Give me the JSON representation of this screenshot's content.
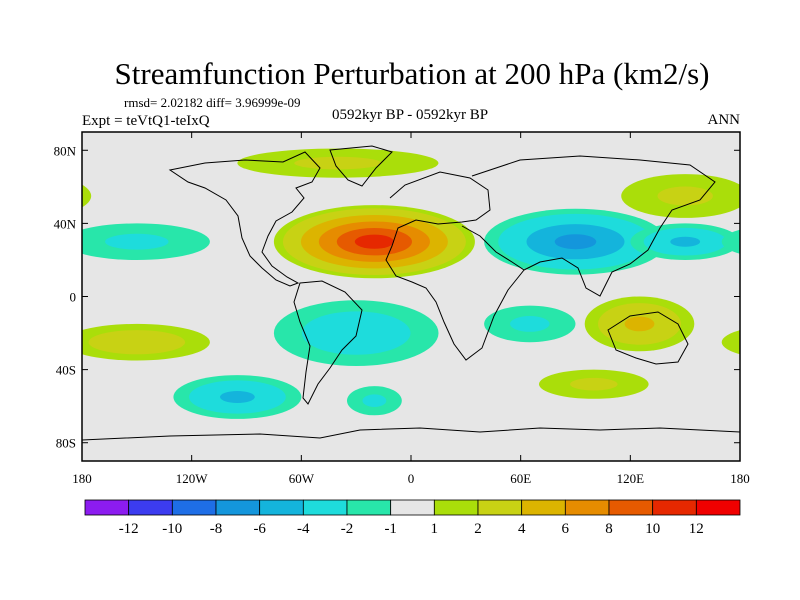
{
  "figure": {
    "title": "Streamfunction Perturbation at 200 hPa (km2/s)",
    "stats": "rmsd= 2.02182  diff= 3.96999e-09",
    "left_label": "Expt = teVtQ1-teIxQ",
    "center_label": "0592kyr BP - 0592kyr BP",
    "right_label": "ANN"
  },
  "chart_data": {
    "type": "filled-contour-map",
    "title": "Streamfunction Perturbation at 200 hPa (km2/s)",
    "projection": "cylindrical equidistant",
    "x_range": [
      -180,
      180
    ],
    "y_range": [
      -90,
      90
    ],
    "x_ticks": [
      {
        "value": -180,
        "label": "180"
      },
      {
        "value": -120,
        "label": "120W"
      },
      {
        "value": -60,
        "label": "60W"
      },
      {
        "value": 0,
        "label": "0"
      },
      {
        "value": 60,
        "label": "60E"
      },
      {
        "value": 120,
        "label": "120E"
      },
      {
        "value": 180,
        "label": "180"
      }
    ],
    "y_ticks": [
      {
        "value": 80,
        "label": "80N"
      },
      {
        "value": 40,
        "label": "40N"
      },
      {
        "value": 0,
        "label": "0"
      },
      {
        "value": -40,
        "label": "40S"
      },
      {
        "value": -80,
        "label": "80S"
      }
    ],
    "contour_levels": [
      -12,
      -10,
      -8,
      -6,
      -4,
      -2,
      -1,
      1,
      2,
      4,
      6,
      8,
      10,
      12
    ],
    "colorbar_colors": [
      "#8c1cf0",
      "#3c3cf0",
      "#1e6ee6",
      "#1496dc",
      "#14b4dc",
      "#1edcdc",
      "#28e6aa",
      "#e6e6e6",
      "#aade0a",
      "#c8d214",
      "#dcb400",
      "#e68c00",
      "#e65a00",
      "#e62800",
      "#f00000"
    ],
    "features": [
      {
        "name": "North Atlantic / North Africa high",
        "lon": -20,
        "lat": 30,
        "lon_radius": 55,
        "lat_radius": 20,
        "peak": 10
      },
      {
        "name": "Asian low",
        "lon": 90,
        "lat": 30,
        "lon_radius": 50,
        "lat_radius": 18,
        "peak": -6
      },
      {
        "name": "NW Pacific low",
        "lon": 150,
        "lat": 30,
        "lon_radius": 30,
        "lat_radius": 10,
        "peak": -4
      },
      {
        "name": "Arctic positive band",
        "lon": -40,
        "lat": 73,
        "lon_radius": 55,
        "lat_radius": 8,
        "peak": 2
      },
      {
        "name": "NE Asia positive",
        "lon": 150,
        "lat": 55,
        "lon_radius": 35,
        "lat_radius": 12,
        "peak": 2
      },
      {
        "name": "Central Pacific low",
        "lon": -150,
        "lat": 30,
        "lon_radius": 40,
        "lat_radius": 10,
        "peak": -2
      },
      {
        "name": "South Atlantic low",
        "lon": -30,
        "lat": -20,
        "lon_radius": 45,
        "lat_radius": 18,
        "peak": -3
      },
      {
        "name": "Indian Ocean low",
        "lon": 65,
        "lat": -15,
        "lon_radius": 25,
        "lat_radius": 10,
        "peak": -2
      },
      {
        "name": "Australia high",
        "lon": 125,
        "lat": -15,
        "lon_radius": 30,
        "lat_radius": 15,
        "peak": 4
      },
      {
        "name": "South Pacific high",
        "lon": -150,
        "lat": -25,
        "lon_radius": 40,
        "lat_radius": 10,
        "peak": 3
      },
      {
        "name": "Southern Ocean low",
        "lon": -95,
        "lat": -55,
        "lon_radius": 35,
        "lat_radius": 12,
        "peak": -4
      },
      {
        "name": "South Indian positive",
        "lon": 100,
        "lat": -48,
        "lon_radius": 30,
        "lat_radius": 8,
        "peak": 2
      },
      {
        "name": "Antarctic low",
        "lon": -20,
        "lat": -57,
        "lon_radius": 15,
        "lat_radius": 8,
        "peak": -2
      }
    ]
  }
}
